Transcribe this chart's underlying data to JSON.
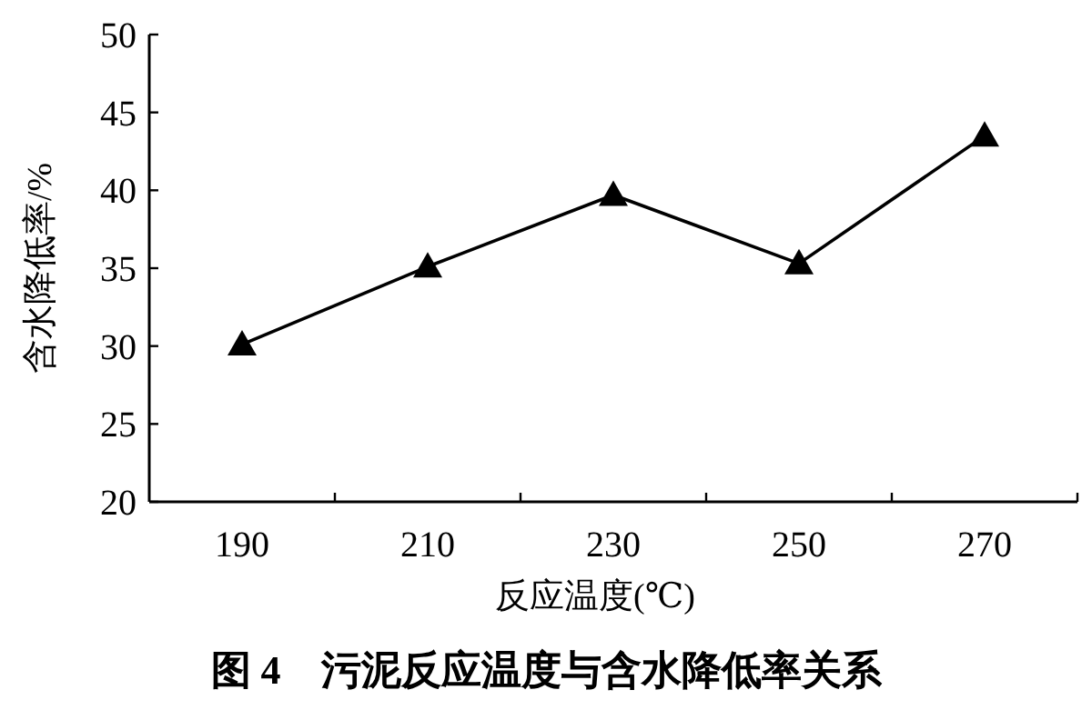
{
  "chart_data": {
    "type": "line",
    "title": "图 4　污泥反应温度与含水降低率关系",
    "xlabel": "反应温度(℃)",
    "ylabel": "含水降低率/%",
    "categories": [
      "190",
      "210",
      "230",
      "250",
      "270"
    ],
    "series": [
      {
        "color": "#000000",
        "values": [
          30.1,
          35.1,
          39.7,
          35.3,
          43.5
        ]
      }
    ],
    "ylim": [
      20,
      50
    ],
    "yticks": [
      20,
      25,
      30,
      35,
      40,
      45,
      50
    ],
    "marker": "triangle",
    "line_style": "solid"
  }
}
